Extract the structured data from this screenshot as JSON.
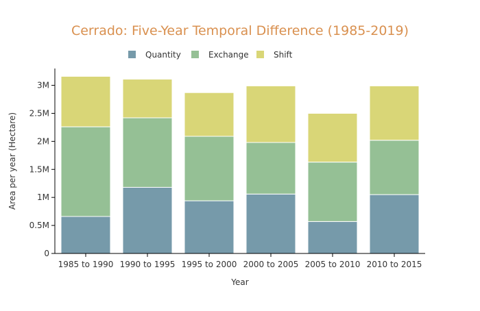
{
  "chart_data": {
    "type": "bar",
    "stacked": true,
    "title": "Cerrado: Five-Year Temporal Difference (1985-2019)",
    "xlabel": "Year",
    "ylabel": "Area per year (Hectare)",
    "categories": [
      "1985 to 1990",
      "1990 to 1995",
      "1995 to 2000",
      "2000 to 2005",
      "2005 to 2010",
      "2010 to 2015"
    ],
    "series": [
      {
        "name": "Quantity",
        "color": "#769aaa",
        "values": [
          660000,
          1180000,
          940000,
          1060000,
          570000,
          1050000
        ]
      },
      {
        "name": "Exchange",
        "color": "#95c095",
        "values": [
          1600000,
          1240000,
          1150000,
          920000,
          1060000,
          970000
        ]
      },
      {
        "name": "Shift",
        "color": "#d9d677",
        "values": [
          900000,
          690000,
          780000,
          1010000,
          870000,
          970000
        ]
      }
    ],
    "ylim": [
      0,
      3300000
    ],
    "yticks": [
      0,
      500000,
      1000000,
      1500000,
      2000000,
      2500000,
      3000000
    ],
    "ytick_labels": [
      "0",
      "0.5M",
      "1M",
      "1.5M",
      "2M",
      "2.5M",
      "3M"
    ],
    "grid": false,
    "legend_position": "top-center",
    "title_color": "#d9904f"
  }
}
